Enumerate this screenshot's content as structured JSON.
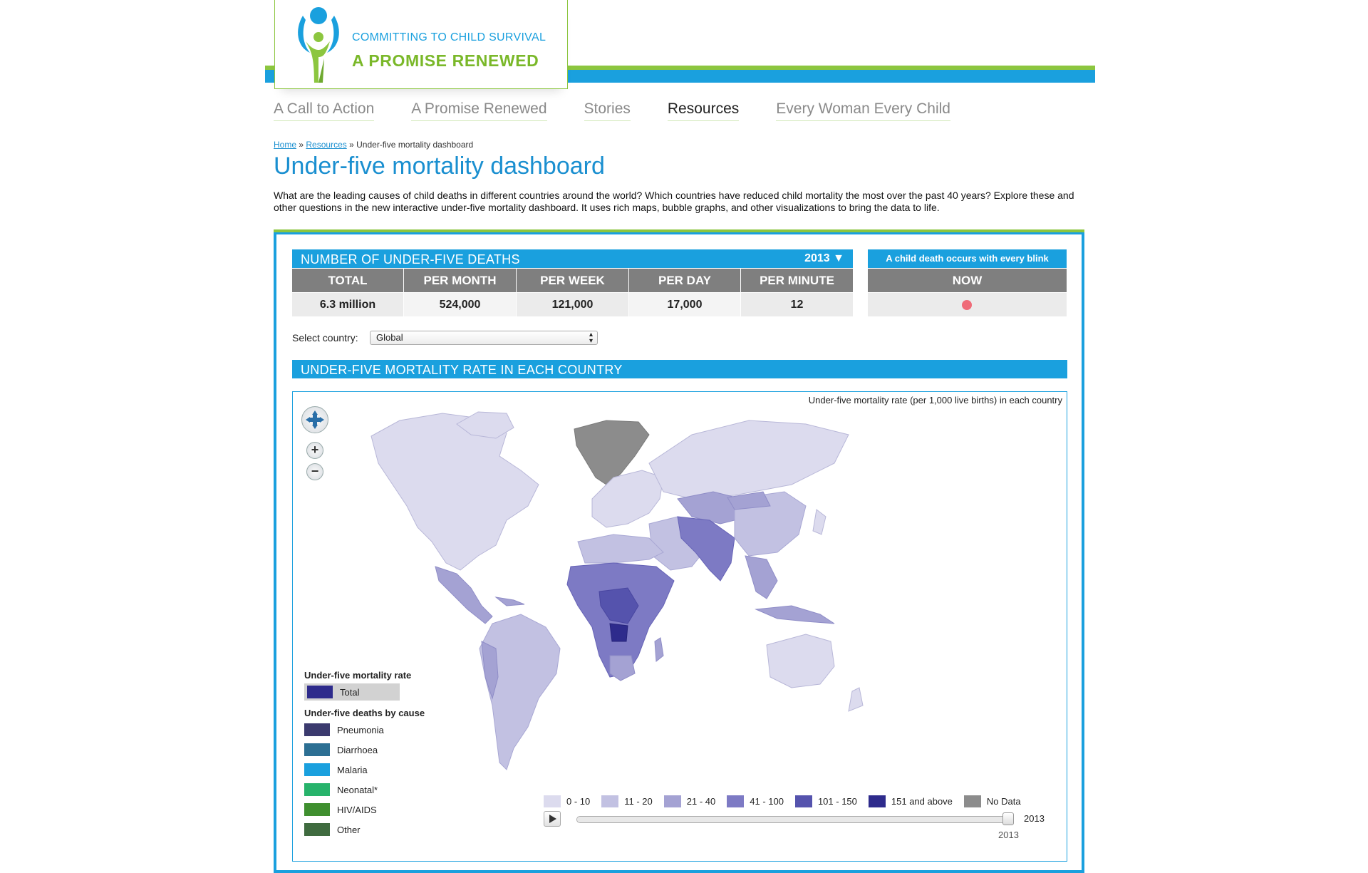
{
  "brand": {
    "line1": "COMMITTING TO CHILD SURVIVAL",
    "line2": "A PROMISE RENEWED"
  },
  "nav": [
    {
      "label": "A Call to Action",
      "active": false
    },
    {
      "label": "A Promise Renewed",
      "active": false
    },
    {
      "label": "Stories",
      "active": false
    },
    {
      "label": "Resources",
      "active": true
    },
    {
      "label": "Every Woman Every Child",
      "active": false
    }
  ],
  "breadcrumb": {
    "home": "Home",
    "sep": "»",
    "resources": "Resources",
    "current": "Under-five mortality dashboard"
  },
  "page_title": "Under-five mortality dashboard",
  "intro": "What are the leading causes of child deaths in different countries around the world? Which countries have reduced child mortality the most over the past 40 years? Explore these and other questions in the new interactive under-five mortality dashboard. It uses rich maps, bubble graphs, and other visualizations to bring the data to life.",
  "deaths_panel": {
    "title": "NUMBER OF UNDER-FIVE DEATHS",
    "year": "2013",
    "columns": [
      "TOTAL",
      "PER MONTH",
      "PER WEEK",
      "PER DAY",
      "PER MINUTE"
    ],
    "values": [
      "6.3 million",
      "524,000",
      "121,000",
      "17,000",
      "12"
    ]
  },
  "blink_panel": {
    "title": "A child death occurs with every blink",
    "header": "NOW"
  },
  "country_select": {
    "label": "Select country:",
    "value": "Global"
  },
  "map_panel": {
    "title": "UNDER-FIVE MORTALITY RATE IN EACH COUNTRY",
    "caption": "Under-five mortality rate (per 1,000 live births) in each country"
  },
  "legend_left": {
    "rate_title": "Under-five mortality rate",
    "rate_items": [
      {
        "label": "Total",
        "color": "#2e2b8c"
      }
    ],
    "cause_title": "Under-five deaths by cause",
    "cause_items": [
      {
        "label": "Pneumonia",
        "color": "#3b3a6e"
      },
      {
        "label": "Diarrhoea",
        "color": "#2c6f93"
      },
      {
        "label": "Malaria",
        "color": "#1aa0de"
      },
      {
        "label": "Neonatal*",
        "color": "#27b36b"
      },
      {
        "label": "HIV/AIDS",
        "color": "#3f8f2f"
      },
      {
        "label": "Other",
        "color": "#3f6b3f"
      }
    ]
  },
  "legend_bottom": [
    {
      "label": "0 - 10",
      "color": "#dcdbee"
    },
    {
      "label": "11 - 20",
      "color": "#c2c1e2"
    },
    {
      "label": "21 - 40",
      "color": "#a4a2d3"
    },
    {
      "label": "41 - 100",
      "color": "#7d7ac4"
    },
    {
      "label": "101 - 150",
      "color": "#5553ad"
    },
    {
      "label": "151 and above",
      "color": "#2e2b8c"
    },
    {
      "label": "No Data",
      "color": "#8c8c8c"
    }
  ],
  "timeline": {
    "year_end": "2013",
    "year_current": "2013",
    "position": 1.0
  },
  "icons": {
    "pan": "pan-icon",
    "zoom_in": "plus-icon",
    "zoom_out": "minus-icon",
    "play": "play-icon",
    "year_dropdown": "triangle-down-icon"
  }
}
